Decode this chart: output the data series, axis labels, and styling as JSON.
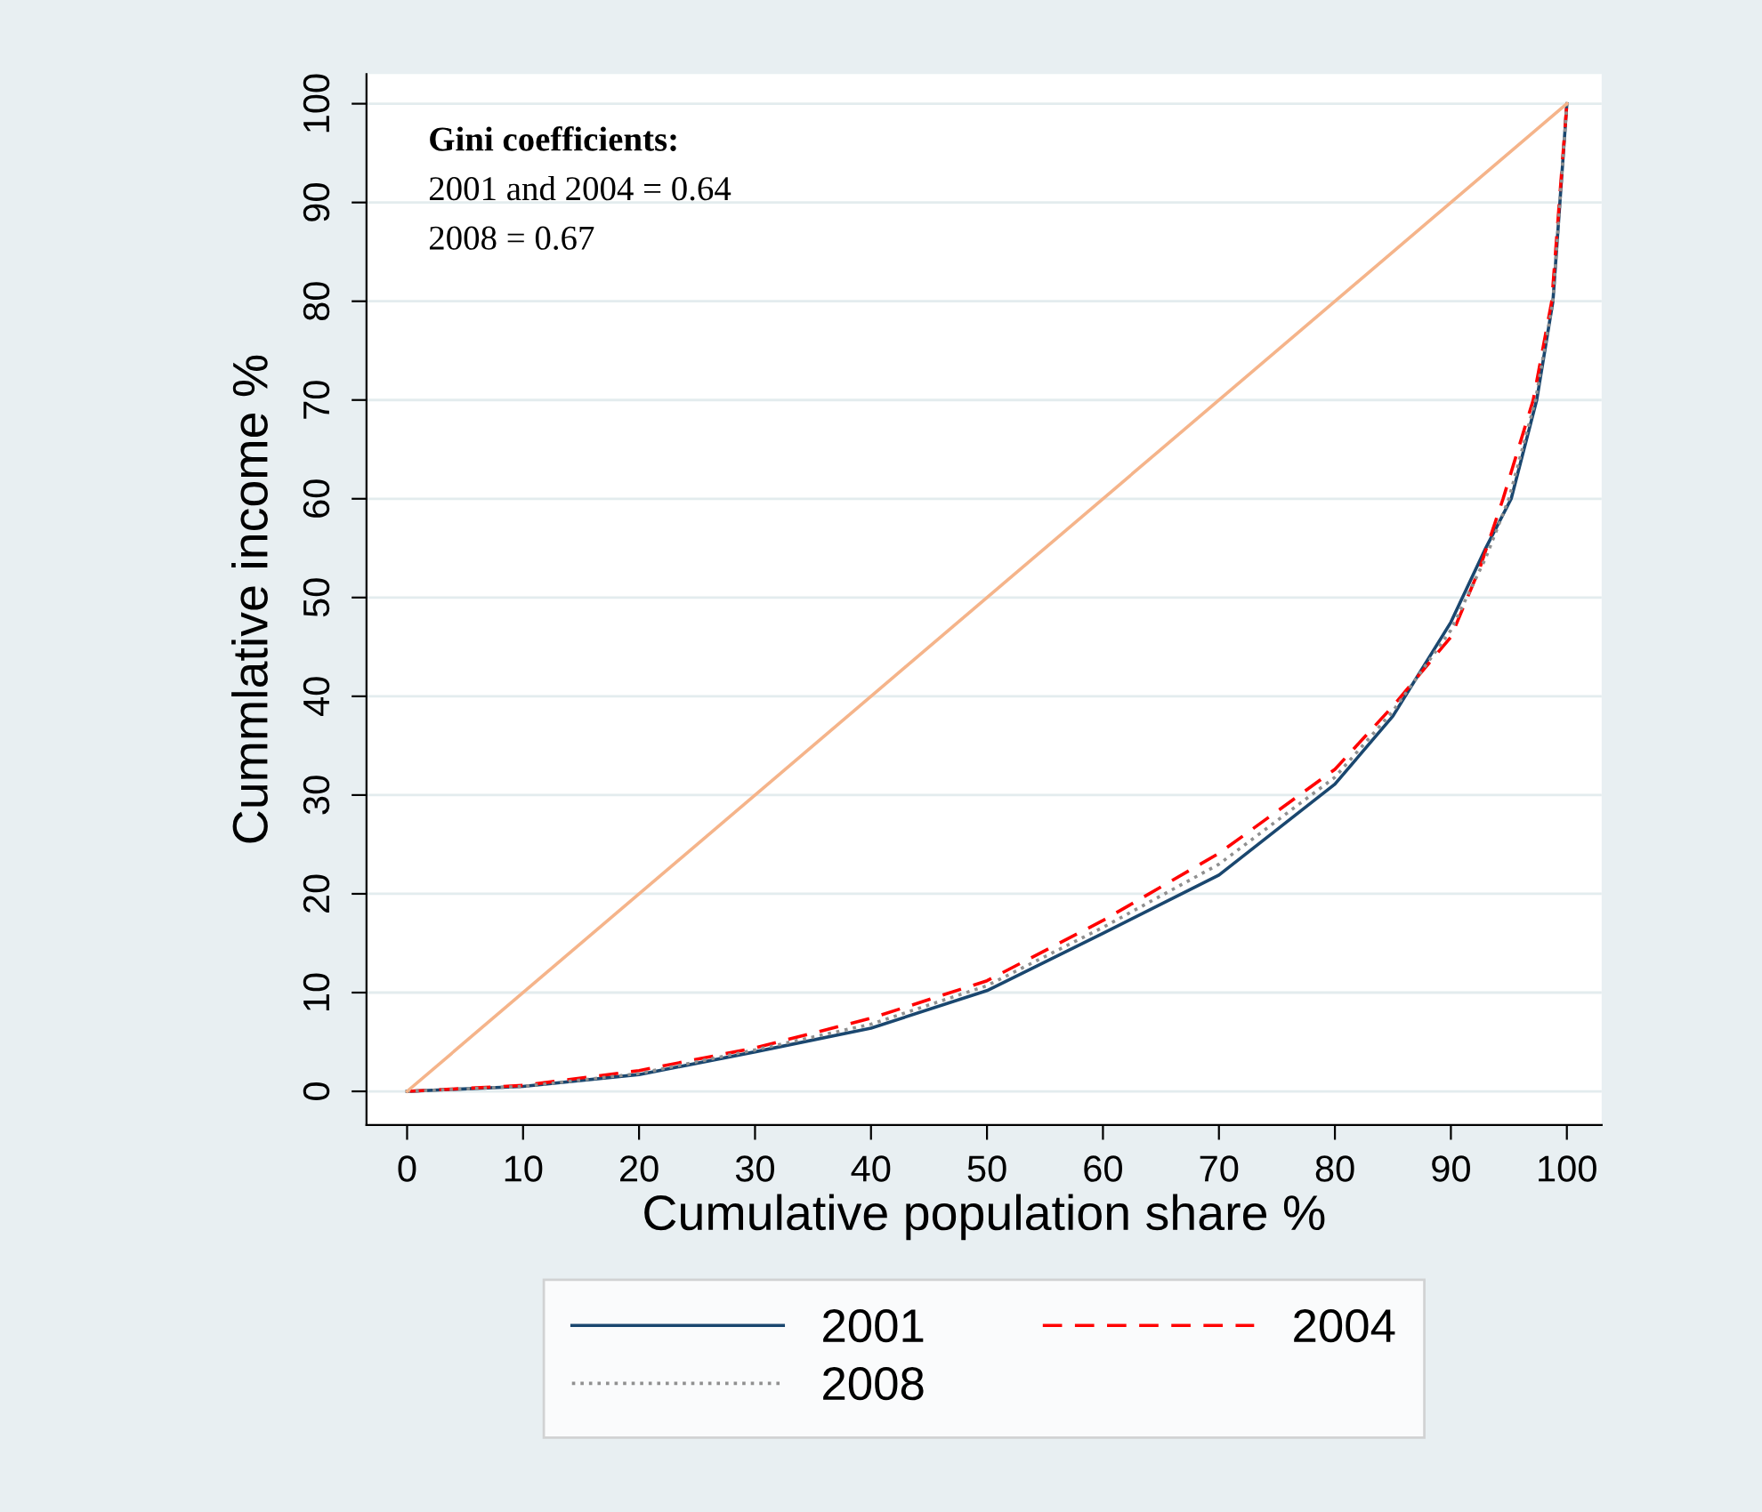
{
  "chart_data": {
    "type": "line",
    "xlabel": "Cumulative population share %",
    "ylabel": "Cummlative income %",
    "annotations": [
      "Gini coefficients:",
      "2001 and 2004 = 0.64",
      "2008 = 0.67"
    ],
    "xlim": [
      -3.5,
      103
    ],
    "ylim": [
      -3.4,
      103
    ],
    "xticks": [
      0,
      10,
      20,
      30,
      40,
      50,
      60,
      70,
      80,
      90,
      100
    ],
    "yticks": [
      0,
      10,
      20,
      30,
      40,
      50,
      60,
      70,
      80,
      90,
      100
    ],
    "grid": "y",
    "legend": "bottom",
    "marker": "none",
    "series": [
      {
        "name": "2001",
        "color": "#1a476f",
        "line_style": "solid",
        "x": [
          0,
          10,
          20,
          30,
          40,
          50,
          60,
          70,
          80,
          85,
          90,
          93,
          95.2,
          97.4,
          98.8,
          100
        ],
        "values": [
          0,
          0.5,
          1.7,
          4.0,
          6.4,
          10.2,
          16.0,
          21.9,
          31.1,
          38,
          47.5,
          55,
          60,
          70,
          80,
          100
        ]
      },
      {
        "name": "2004",
        "color": "#ff0000",
        "line_style": "dashed",
        "x": [
          0,
          10,
          20,
          30,
          40,
          50,
          60,
          70,
          80,
          85,
          90,
          92.5,
          94.5,
          97.1,
          98.7,
          100
        ],
        "values": [
          0,
          0.6,
          2.1,
          4.4,
          7.4,
          11.2,
          17.3,
          24.1,
          32.6,
          39,
          46,
          53,
          60,
          70,
          80,
          100
        ]
      },
      {
        "name": "2008",
        "color": "#909090",
        "line_style": "dotted",
        "x": [
          0,
          10,
          20,
          30,
          40,
          50,
          60,
          70,
          80,
          85,
          90,
          93,
          95,
          97.3,
          98.8,
          100
        ],
        "values": [
          0,
          0.5,
          1.8,
          4.2,
          6.8,
          10.7,
          16.6,
          23,
          31.8,
          38.5,
          46.7,
          54,
          60,
          70,
          80,
          100
        ]
      },
      {
        "color": "#f5b48a",
        "line_style": "solid",
        "x": [
          0,
          100
        ],
        "values": [
          0,
          100
        ]
      }
    ]
  }
}
